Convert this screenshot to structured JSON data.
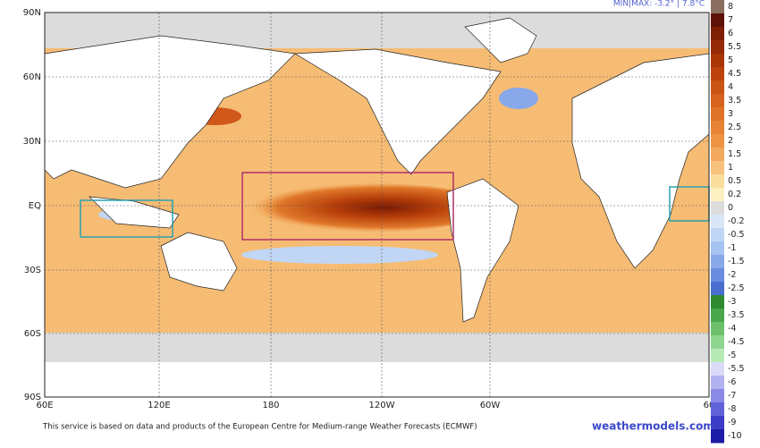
{
  "header": {
    "minmax": "MIN|MAX: -3.2° | 7.8°C"
  },
  "lat_labels": [
    "90N",
    "60N",
    "30N",
    "EQ",
    "30S",
    "60S",
    "90S"
  ],
  "lon_labels": [
    "60E",
    "120E",
    "180",
    "120W",
    "60W",
    "60"
  ],
  "legend": [
    {
      "label": "8",
      "color": "#8a6e60"
    },
    {
      "label": "7",
      "color": "#5e1208"
    },
    {
      "label": "6",
      "color": "#7e1e04"
    },
    {
      "label": "5.5",
      "color": "#962a06"
    },
    {
      "label": "5",
      "color": "#aa3608"
    },
    {
      "label": "4.5",
      "color": "#bc440c"
    },
    {
      "label": "4",
      "color": "#c95414"
    },
    {
      "label": "3.5",
      "color": "#d6641e"
    },
    {
      "label": "3",
      "color": "#df7428"
    },
    {
      "label": "2.5",
      "color": "#e78434"
    },
    {
      "label": "2",
      "color": "#ee9444"
    },
    {
      "label": "1.5",
      "color": "#f3aa5e"
    },
    {
      "label": "1",
      "color": "#f7c27c"
    },
    {
      "label": "0.5",
      "color": "#fadc9c"
    },
    {
      "label": "0.2",
      "color": "#fdf0c0"
    },
    {
      "label": "0",
      "color": "#dcdcdc"
    },
    {
      "label": "-0.2",
      "color": "#d8e6f8"
    },
    {
      "label": "-0.5",
      "color": "#c0d6f4"
    },
    {
      "label": "-1",
      "color": "#a6c2f0"
    },
    {
      "label": "-1.5",
      "color": "#88a8ea"
    },
    {
      "label": "-2",
      "color": "#6a8ce0"
    },
    {
      "label": "-2.5",
      "color": "#4a6ed0"
    },
    {
      "label": "-3",
      "color": "#2e8a2e"
    },
    {
      "label": "-3.5",
      "color": "#4aa64a"
    },
    {
      "label": "-4",
      "color": "#6cc06c"
    },
    {
      "label": "-4.5",
      "color": "#90d690"
    },
    {
      "label": "-5",
      "color": "#b8eab8"
    },
    {
      "label": "-5.5",
      "color": "#dadaf8"
    },
    {
      "label": "-6",
      "color": "#b2b2f0"
    },
    {
      "label": "-7",
      "color": "#8a8ae6"
    },
    {
      "label": "-8",
      "color": "#6262d8"
    },
    {
      "label": "-9",
      "color": "#3c3cc6"
    },
    {
      "label": "-10",
      "color": "#1c1ca6"
    }
  ],
  "footer": {
    "credit": "This service is based on data and products of the European Centre for Medium-range Weather Forecasts (ECMWF)",
    "site": "weathermodels.com"
  }
}
